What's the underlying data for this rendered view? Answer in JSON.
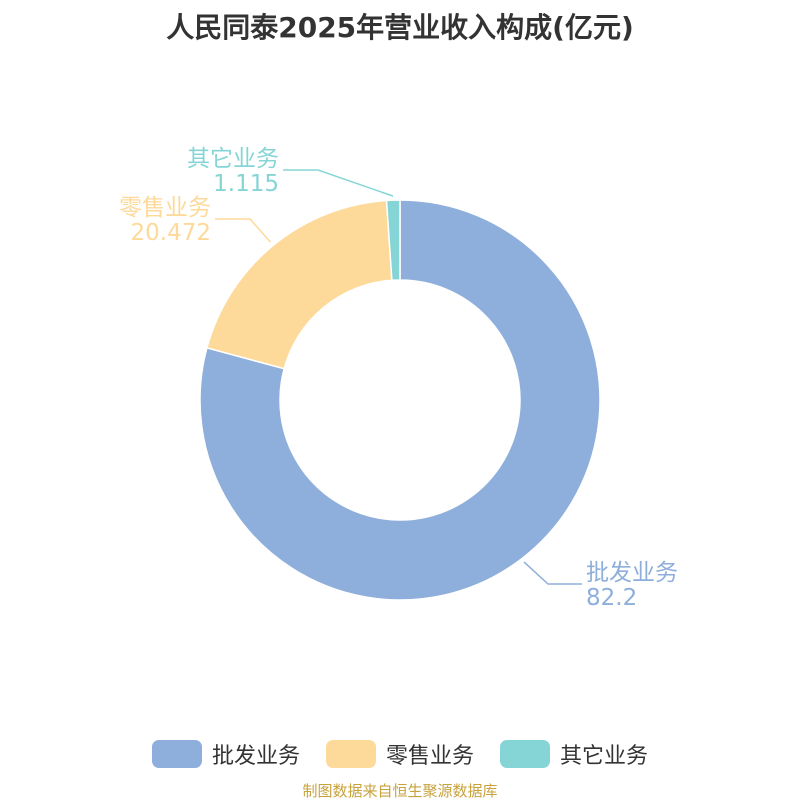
{
  "chart_data": {
    "type": "pie",
    "title": "人民同泰2025年营业收入构成(亿元)",
    "categories": [
      "批发业务",
      "零售业务",
      "其它业务"
    ],
    "values": [
      82.2,
      20.472,
      1.115
    ],
    "value_labels": [
      "82.2",
      "20.472",
      "1.115"
    ],
    "colors": [
      "#8eaedb",
      "#fdd99a",
      "#86d5d6"
    ],
    "donut": true,
    "legend_position": "bottom"
  },
  "source": "制图数据来自恒生聚源数据库"
}
